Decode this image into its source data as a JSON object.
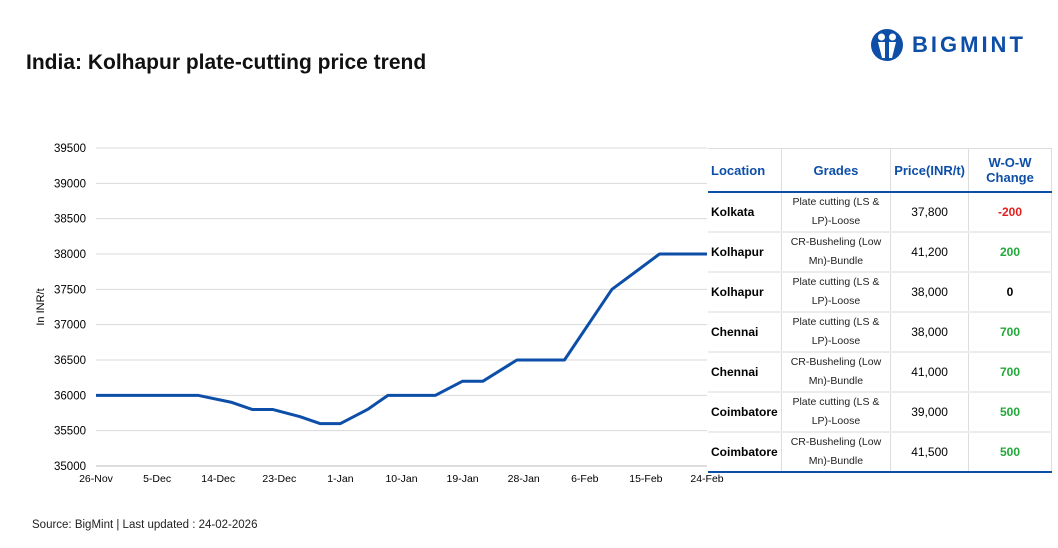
{
  "title": "India: Kolhapur plate-cutting price trend",
  "logo": {
    "text": "BIGMINT"
  },
  "source": "Source: BigMint | Last updated : 24-02-2026",
  "colors": {
    "line": "#0d4fa8",
    "negative": "#e41e1e",
    "positive": "#22a83a",
    "neutral": "#000000"
  },
  "chart_data": {
    "type": "line",
    "title": "India: Kolhapur plate-cutting price trend",
    "xlabel": "",
    "ylabel": "In INR/t",
    "ylim": [
      35000,
      39500
    ],
    "yticks": [
      35000,
      35500,
      36000,
      36500,
      37000,
      37500,
      38000,
      38500,
      39000,
      39500
    ],
    "xrange_days": [
      0,
      90
    ],
    "xtick_labels": [
      "26-Nov",
      "5-Dec",
      "14-Dec",
      "23-Dec",
      "1-Jan",
      "10-Jan",
      "19-Jan",
      "28-Jan",
      "6-Feb",
      "15-Feb",
      "24-Feb"
    ],
    "grid": true,
    "series": [
      {
        "name": "Kolhapur plate-cutting",
        "x_days_from_26Nov": [
          0,
          15,
          20,
          23,
          26,
          30,
          33,
          36,
          40,
          43,
          50,
          54,
          57,
          62,
          69,
          76,
          83,
          90
        ],
        "x": [
          "26-Nov",
          "11-Dec",
          "16-Dec",
          "19-Dec",
          "22-Dec",
          "26-Dec",
          "29-Dec",
          "1-Jan",
          "5-Jan",
          "8-Jan",
          "15-Jan",
          "19-Jan",
          "22-Jan",
          "27-Jan",
          "3-Feb",
          "10-Feb",
          "17-Feb",
          "24-Feb"
        ],
        "values": [
          36000,
          36000,
          35900,
          35800,
          35800,
          35700,
          35600,
          35600,
          35800,
          36000,
          36000,
          36200,
          36200,
          36500,
          36500,
          37500,
          38000,
          38000
        ]
      }
    ]
  },
  "table": {
    "headers": [
      "Location",
      "Grades",
      "Price(INR/t)",
      "W-O-W Change"
    ],
    "rows": [
      {
        "location": "Kolkata",
        "grade": "Plate cutting (LS & LP)-Loose",
        "price": "37,800",
        "change": "-200",
        "tone": "negative"
      },
      {
        "location": "Kolhapur",
        "grade": "CR-Busheling (Low Mn)-Bundle",
        "price": "41,200",
        "change": "200",
        "tone": "positive"
      },
      {
        "location": "Kolhapur",
        "grade": "Plate cutting (LS & LP)-Loose",
        "price": "38,000",
        "change": "0",
        "tone": "neutral"
      },
      {
        "location": "Chennai",
        "grade": "Plate cutting (LS & LP)-Loose",
        "price": "38,000",
        "change": "700",
        "tone": "positive"
      },
      {
        "location": "Chennai",
        "grade": "CR-Busheling (Low Mn)-Bundle",
        "price": "41,000",
        "change": "700",
        "tone": "positive"
      },
      {
        "location": "Coimbatore",
        "grade": "Plate cutting (LS & LP)-Loose",
        "price": "39,000",
        "change": "500",
        "tone": "positive"
      },
      {
        "location": "Coimbatore",
        "grade": "CR-Busheling (Low Mn)-Bundle",
        "price": "41,500",
        "change": "500",
        "tone": "positive"
      }
    ]
  }
}
